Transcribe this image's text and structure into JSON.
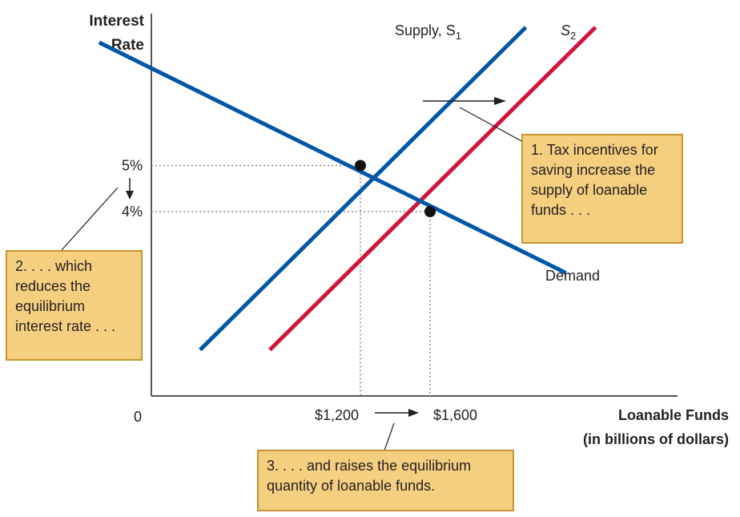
{
  "chart_data": {
    "type": "line",
    "ylabel": [
      "Interest",
      "Rate"
    ],
    "xlabel": [
      "Loanable Funds",
      "(in billions of dollars)"
    ],
    "origin_label": "0",
    "x_axis_range": [
      0,
      2350
    ],
    "y_axis_range": [
      0,
      10.5
    ],
    "grid": false,
    "legend": "none",
    "series": [
      {
        "name": "Supply, S",
        "subscript": "1",
        "color": "#0057a8",
        "x": [
          280,
          2150
        ],
        "y": [
          1.0,
          8.0
        ]
      },
      {
        "name": "S",
        "subscript": "2",
        "color": "#d1143b",
        "x": [
          680,
          2550
        ],
        "y": [
          1.0,
          8.0
        ]
      },
      {
        "name": "Demand",
        "color": "#0057a8",
        "x": [
          -300,
          2380
        ],
        "y": [
          7.67,
          2.67
        ]
      }
    ],
    "equilibria": [
      {
        "x": 1200,
        "y": 5,
        "x_label": "$1,200",
        "y_label": "5%"
      },
      {
        "x": 1600,
        "y": 4,
        "x_label": "$1,600",
        "y_label": "4%"
      }
    ]
  },
  "annotations": {
    "box1": [
      "1. Tax incentives for",
      "saving increase the",
      "supply of loanable",
      "funds . . ."
    ],
    "box2": [
      "2. . . . which",
      "reduces the",
      "equilibrium",
      "interest rate . . ."
    ],
    "box3": [
      "3. . . . and raises the equilibrium",
      "quantity of loanable funds."
    ]
  },
  "colors": {
    "supply1": "#0057a8",
    "supply2": "#d1143b",
    "demand": "#0057a8",
    "note_fill": "#f5cf80",
    "note_border": "#c9932e"
  }
}
